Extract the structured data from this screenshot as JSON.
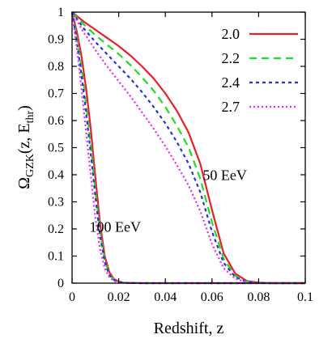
{
  "chart_data": {
    "type": "line",
    "xlabel": "Redshift, z",
    "ylabel": {
      "main": "Ω",
      "main_sub": "GZK",
      "mid": "(z, E",
      "mid_sub": "thr",
      "end": ")"
    },
    "xlim": [
      0,
      0.1
    ],
    "ylim": [
      0,
      1
    ],
    "x_ticks": [
      0,
      0.02,
      0.04,
      0.06,
      0.08,
      0.1
    ],
    "x_tick_labels": [
      "0",
      "0.02",
      "0.04",
      "0.06",
      "0.08",
      "0.1"
    ],
    "y_ticks": [
      0,
      0.1,
      0.2,
      0.3,
      0.4,
      0.5,
      0.6,
      0.7,
      0.8,
      0.9,
      1
    ],
    "y_tick_labels": [
      "0",
      "0.1",
      "0.2",
      "0.3",
      "0.4",
      "0.5",
      "0.6",
      "0.7",
      "0.8",
      "0.9",
      "1"
    ],
    "grid": false,
    "legend_position": "top-right",
    "annotations": [
      {
        "text": "50 EeV",
        "x": 0.0655,
        "y": 0.38
      },
      {
        "text": "100 EeV",
        "x": 0.0185,
        "y": 0.19
      }
    ],
    "groups": [
      {
        "label": "50 EeV",
        "x": [
          0,
          0.005,
          0.01,
          0.015,
          0.02,
          0.025,
          0.03,
          0.035,
          0.04,
          0.045,
          0.05,
          0.055,
          0.06,
          0.065,
          0.07,
          0.075,
          0.08,
          0.085,
          0.09,
          0.1
        ],
        "series": [
          {
            "name": "2.0",
            "color": "#e8202a",
            "dash": "",
            "values": [
              1.0,
              0.965,
              0.935,
              0.905,
              0.875,
              0.84,
              0.8,
              0.755,
              0.7,
              0.635,
              0.555,
              0.44,
              0.27,
              0.11,
              0.035,
              0.008,
              0.002,
              0,
              0,
              0
            ]
          },
          {
            "name": "2.2",
            "color": "#22dd22",
            "dash": "9 6",
            "values": [
              1.0,
              0.955,
              0.915,
              0.88,
              0.845,
              0.805,
              0.76,
              0.71,
              0.65,
              0.58,
              0.5,
              0.385,
              0.225,
              0.09,
              0.027,
              0.006,
              0.001,
              0,
              0,
              0
            ]
          },
          {
            "name": "2.4",
            "color": "#2233dd",
            "dash": "4 4",
            "values": [
              1.0,
              0.94,
              0.89,
              0.845,
              0.8,
              0.755,
              0.705,
              0.65,
              0.59,
              0.52,
              0.44,
              0.335,
              0.19,
              0.075,
              0.022,
              0.005,
              0.001,
              0,
              0,
              0
            ]
          },
          {
            "name": "2.7",
            "color": "#ee22ee",
            "dash": "2 3",
            "values": [
              1.0,
              0.925,
              0.86,
              0.8,
              0.745,
              0.69,
              0.63,
              0.57,
              0.505,
              0.435,
              0.36,
              0.265,
              0.145,
              0.055,
              0.016,
              0.004,
              0.001,
              0,
              0,
              0
            ]
          }
        ]
      },
      {
        "label": "100 EeV",
        "x": [
          0,
          0.002,
          0.004,
          0.006,
          0.008,
          0.01,
          0.012,
          0.014,
          0.016,
          0.018,
          0.02,
          0.022,
          0.025,
          0.03,
          0.035,
          0.1
        ],
        "series": [
          {
            "name": "2.0",
            "color": "#e8202a",
            "dash": "",
            "values": [
              1.0,
              0.93,
              0.84,
              0.72,
              0.57,
              0.39,
              0.22,
              0.1,
              0.04,
              0.015,
              0.006,
              0.002,
              0.0008,
              0.0001,
              0,
              0
            ]
          },
          {
            "name": "2.2",
            "color": "#22dd22",
            "dash": "9 6",
            "values": [
              1.0,
              0.91,
              0.8,
              0.66,
              0.51,
              0.34,
              0.19,
              0.085,
              0.033,
              0.012,
              0.005,
              0.002,
              0.0005,
              0.0001,
              0,
              0
            ]
          },
          {
            "name": "2.4",
            "color": "#2233dd",
            "dash": "4 4",
            "values": [
              1.0,
              0.895,
              0.77,
              0.63,
              0.48,
              0.32,
              0.175,
              0.078,
              0.03,
              0.011,
              0.004,
              0.0015,
              0.0005,
              0.0001,
              0,
              0
            ]
          },
          {
            "name": "2.7",
            "color": "#ee22ee",
            "dash": "2 3",
            "values": [
              1.0,
              0.87,
              0.72,
              0.56,
              0.4,
              0.24,
              0.125,
              0.055,
              0.021,
              0.008,
              0.003,
              0.001,
              0.0003,
              0,
              0,
              0
            ]
          }
        ]
      }
    ],
    "legend": [
      {
        "name": "2.0",
        "color": "#e8202a",
        "dash": ""
      },
      {
        "name": "2.2",
        "color": "#22dd22",
        "dash": "9 6"
      },
      {
        "name": "2.4",
        "color": "#2233dd",
        "dash": "4 4"
      },
      {
        "name": "2.7",
        "color": "#ee22ee",
        "dash": "2 3"
      }
    ]
  }
}
